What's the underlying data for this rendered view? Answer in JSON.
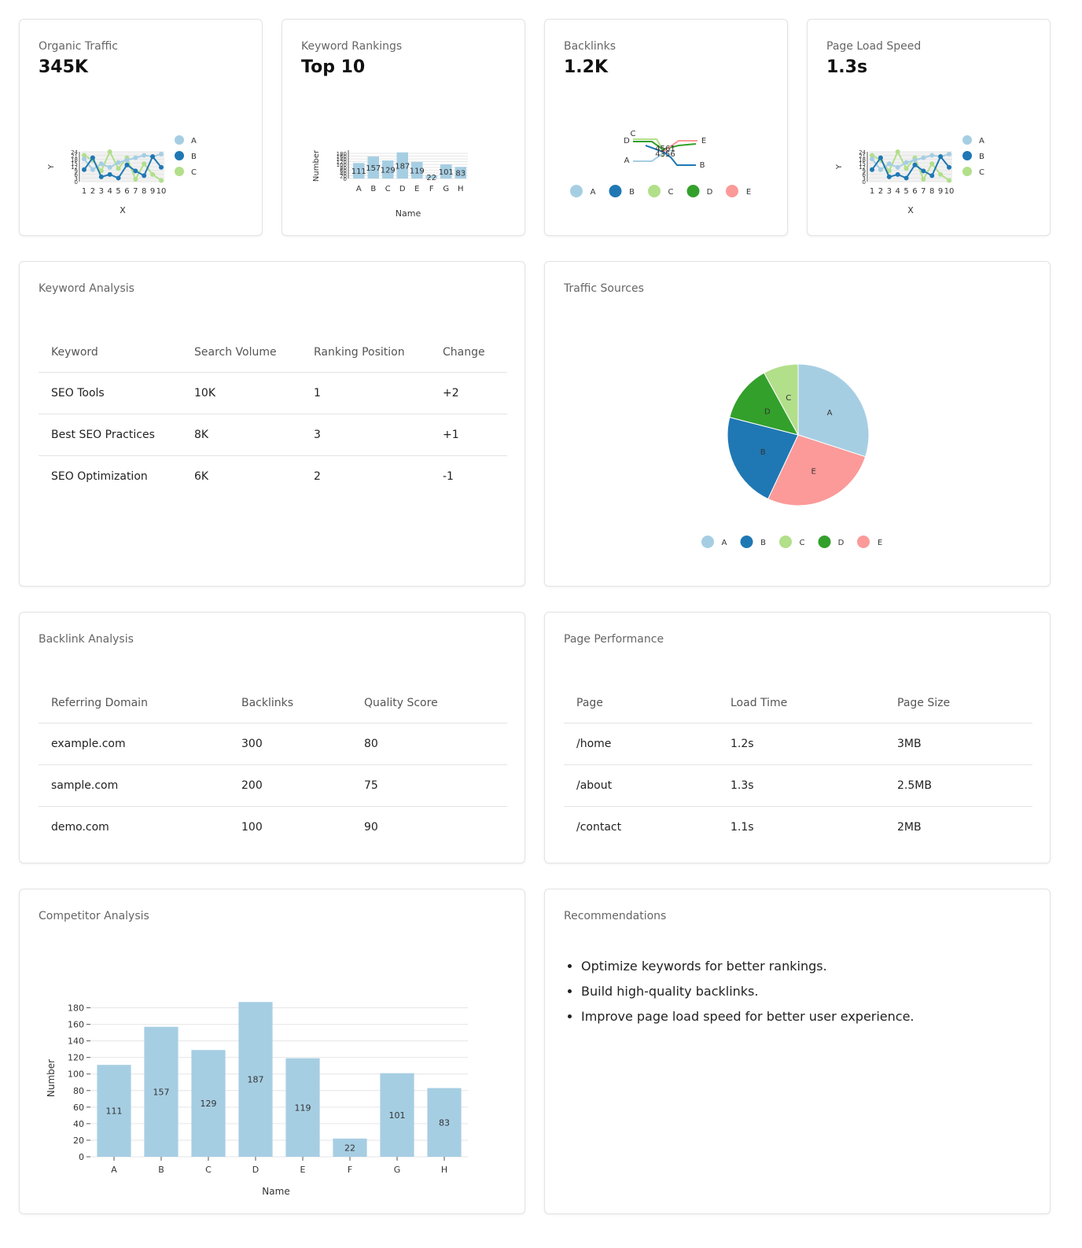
{
  "kpis": {
    "organic_traffic": {
      "title": "Organic Traffic",
      "value": "345K"
    },
    "keyword_rankings": {
      "title": "Keyword Rankings",
      "value": "Top 10"
    },
    "backlinks": {
      "title": "Backlinks",
      "value": "1.2K"
    },
    "page_load_speed": {
      "title": "Page Load Speed",
      "value": "1.3s"
    }
  },
  "keyword_analysis": {
    "title": "Keyword Analysis",
    "columns": [
      "Keyword",
      "Search Volume",
      "Ranking Position",
      "Change"
    ],
    "rows": [
      [
        "SEO Tools",
        "10K",
        "1",
        "+2"
      ],
      [
        "Best SEO Practices",
        "8K",
        "3",
        "+1"
      ],
      [
        "SEO Optimization",
        "6K",
        "2",
        "-1"
      ]
    ]
  },
  "traffic_sources": {
    "title": "Traffic Sources"
  },
  "backlink_analysis": {
    "title": "Backlink Analysis",
    "columns": [
      "Referring Domain",
      "Backlinks",
      "Quality Score"
    ],
    "rows": [
      [
        "example.com",
        "300",
        "80"
      ],
      [
        "sample.com",
        "200",
        "75"
      ],
      [
        "demo.com",
        "100",
        "90"
      ]
    ]
  },
  "page_performance": {
    "title": "Page Performance",
    "columns": [
      "Page",
      "Load Time",
      "Page Size"
    ],
    "rows": [
      [
        "/home",
        "1.2s",
        "3MB"
      ],
      [
        "/about",
        "1.3s",
        "2.5MB"
      ],
      [
        "/contact",
        "1.1s",
        "2MB"
      ]
    ]
  },
  "competitor_analysis": {
    "title": "Competitor Analysis"
  },
  "recommendations": {
    "title": "Recommendations",
    "items": [
      "Optimize keywords for better rankings.",
      "Build high-quality backlinks.",
      "Improve page load speed for better user experience."
    ]
  },
  "colors": {
    "A": "#a6cee3",
    "B": "#1f78b4",
    "C": "#b2df8a",
    "D": "#33a02c",
    "E": "#fb9a99",
    "grid": "#e6e6e6",
    "axis": "#555555"
  },
  "chart_data": [
    {
      "id": "organic-traffic-line",
      "type": "line",
      "xlabel": "X",
      "ylabel": "Y",
      "x": [
        1,
        2,
        3,
        4,
        5,
        6,
        7,
        8,
        9,
        10
      ],
      "series": [
        {
          "name": "A",
          "values": [
            19,
            10,
            15,
            12,
            16,
            18,
            20,
            22,
            21,
            23
          ]
        },
        {
          "name": "B",
          "values": [
            10,
            20,
            4,
            6,
            3,
            14,
            9,
            5,
            21,
            12
          ]
        },
        {
          "name": "C",
          "values": [
            22,
            18,
            9,
            25,
            11,
            20,
            2,
            15,
            6,
            1
          ]
        }
      ],
      "ylim": [
        0,
        25
      ]
    },
    {
      "id": "keyword-rankings-bar",
      "type": "bar",
      "xlabel": "Name",
      "ylabel": "Number",
      "categories": [
        "A",
        "B",
        "C",
        "D",
        "E",
        "F",
        "G",
        "H"
      ],
      "values": [
        111,
        157,
        129,
        187,
        119,
        22,
        101,
        83
      ],
      "ylim": [
        0,
        180
      ]
    },
    {
      "id": "backlinks-bump",
      "type": "line",
      "categories": [
        "A",
        "B",
        "C",
        "D",
        "E"
      ],
      "labels": [
        "4561",
        "4356"
      ]
    },
    {
      "id": "page-load-line",
      "type": "line",
      "xlabel": "X",
      "ylabel": "Y",
      "x": [
        1,
        2,
        3,
        4,
        5,
        6,
        7,
        8,
        9,
        10
      ],
      "series": [
        {
          "name": "A",
          "values": [
            19,
            10,
            15,
            12,
            16,
            18,
            20,
            22,
            21,
            23
          ]
        },
        {
          "name": "B",
          "values": [
            10,
            20,
            4,
            6,
            3,
            14,
            9,
            5,
            21,
            12
          ]
        },
        {
          "name": "C",
          "values": [
            22,
            18,
            9,
            25,
            11,
            20,
            2,
            15,
            6,
            1
          ]
        }
      ],
      "ylim": [
        0,
        25
      ]
    },
    {
      "id": "traffic-sources-pie",
      "type": "pie",
      "categories": [
        "A",
        "B",
        "C",
        "D",
        "E"
      ],
      "values": [
        30,
        22,
        8,
        13,
        27
      ]
    },
    {
      "id": "competitor-bar",
      "type": "bar",
      "xlabel": "Name",
      "ylabel": "Number",
      "categories": [
        "A",
        "B",
        "C",
        "D",
        "E",
        "F",
        "G",
        "H"
      ],
      "values": [
        111,
        157,
        129,
        187,
        119,
        22,
        101,
        83
      ],
      "yticks": [
        0,
        20,
        40,
        60,
        80,
        100,
        120,
        140,
        160,
        180
      ],
      "ylim": [
        0,
        190
      ]
    }
  ]
}
